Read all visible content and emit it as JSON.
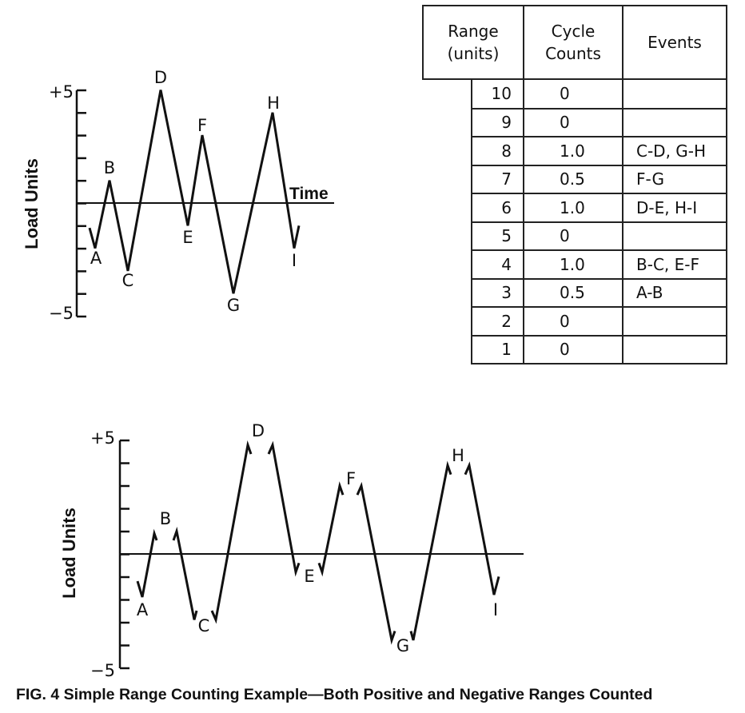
{
  "top_chart": {
    "y_axis_label": "Load Units",
    "y_max_label": "+5",
    "y_min_label": "−5",
    "x_axis_label": "Time",
    "points": [
      {
        "label": "A",
        "load": -2
      },
      {
        "label": "B",
        "load": 1
      },
      {
        "label": "C",
        "load": -3
      },
      {
        "label": "D",
        "load": 5
      },
      {
        "label": "E",
        "load": -1
      },
      {
        "label": "F",
        "load": 3
      },
      {
        "label": "G",
        "load": -4
      },
      {
        "label": "H",
        "load": 4
      },
      {
        "label": "I",
        "load": -2
      }
    ]
  },
  "table": {
    "headers": {
      "range": "Range (units)",
      "range_line1": "Range",
      "range_line2": "(units)",
      "cycle_line1": "Cycle",
      "cycle_line2": "Counts",
      "events": "Events"
    },
    "rows": [
      {
        "range": "10",
        "count": "0",
        "events": ""
      },
      {
        "range": "9",
        "count": "0",
        "events": ""
      },
      {
        "range": "8",
        "count": "1.0",
        "events": "C-D, G-H"
      },
      {
        "range": "7",
        "count": "0.5",
        "events": "F-G"
      },
      {
        "range": "6",
        "count": "1.0",
        "events": "D-E, H-I"
      },
      {
        "range": "5",
        "count": "0",
        "events": ""
      },
      {
        "range": "4",
        "count": "1.0",
        "events": "B-C, E-F"
      },
      {
        "range": "3",
        "count": "0.5",
        "events": "A-B"
      },
      {
        "range": "2",
        "count": "0",
        "events": ""
      },
      {
        "range": "1",
        "count": "0",
        "events": ""
      }
    ]
  },
  "bottom_chart": {
    "y_axis_label": "Load Units",
    "y_max_label": "+5",
    "y_min_label": "−5",
    "points": [
      {
        "label": "A",
        "load": -2
      },
      {
        "label": "B",
        "load": 1
      },
      {
        "label": "C",
        "load": -3
      },
      {
        "label": "D",
        "load": 5
      },
      {
        "label": "E",
        "load": -1
      },
      {
        "label": "F",
        "load": 3
      },
      {
        "label": "G",
        "load": -4
      },
      {
        "label": "H",
        "load": 4
      },
      {
        "label": "I",
        "load": -2
      }
    ]
  },
  "caption": "FIG. 4  Simple Range Counting Example—Both Positive and Negative Ranges Counted"
}
